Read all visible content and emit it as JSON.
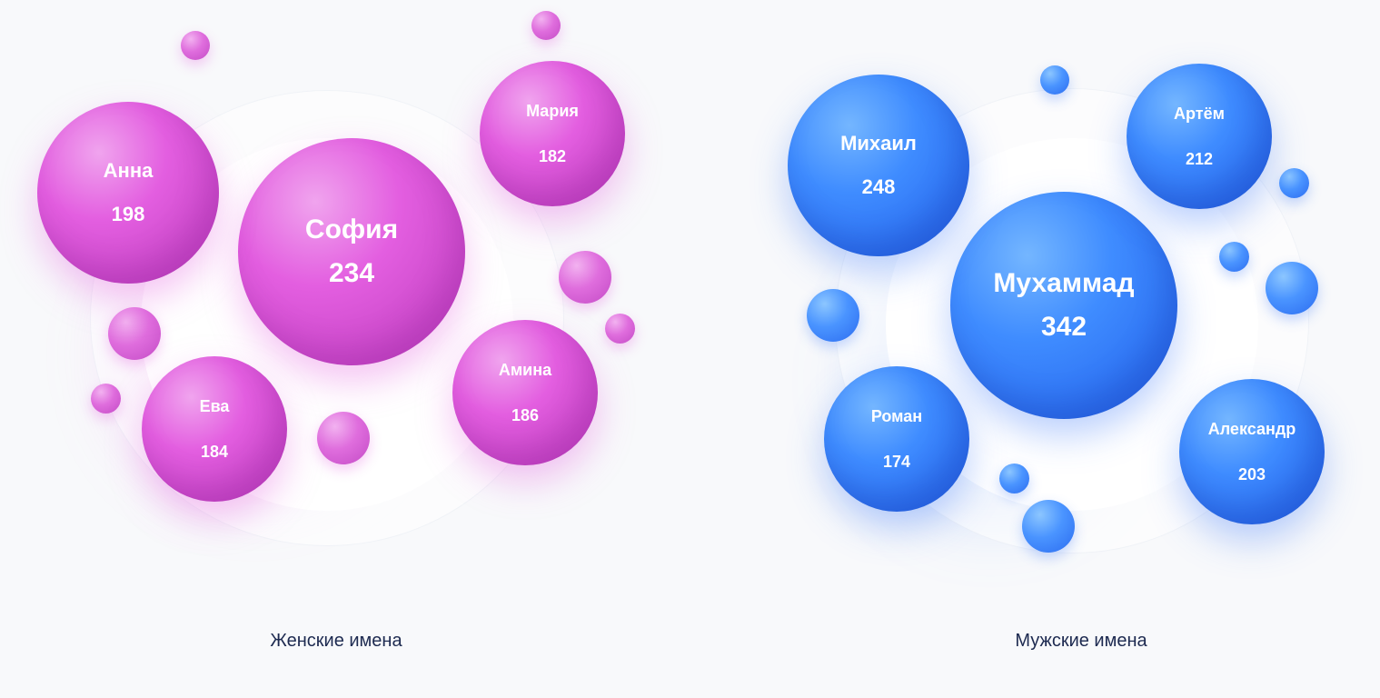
{
  "colors": {
    "female": "#e04ee0",
    "male": "#2f74fb",
    "caption": "#1d2a50",
    "background": "#f8f9fb"
  },
  "chart_data": [
    {
      "type": "bubble",
      "title": "Женские имена",
      "names": [
        "София",
        "Анна",
        "Амина",
        "Ева",
        "Мария"
      ],
      "values": [
        234,
        198,
        186,
        184,
        182
      ]
    },
    {
      "type": "bubble",
      "title": "Мужские имена",
      "names": [
        "Мухаммад",
        "Михаил",
        "Артём",
        "Александр",
        "Роман"
      ],
      "values": [
        342,
        248,
        212,
        203,
        174
      ]
    }
  ]
}
